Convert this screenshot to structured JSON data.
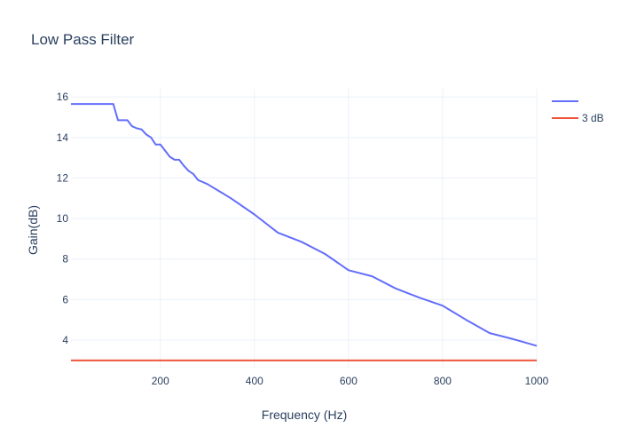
{
  "chart_data": {
    "type": "line",
    "title": "Low Pass Filter",
    "xlabel": "Frequency (Hz)",
    "ylabel": "Gain(dB)",
    "xlim": [
      10,
      1000
    ],
    "ylim": [
      2.6,
      16.4
    ],
    "xticks": [
      200,
      400,
      600,
      800,
      1000
    ],
    "yticks": [
      4,
      6,
      8,
      10,
      12,
      14,
      16
    ],
    "grid": true,
    "legend_position": "top-right",
    "series": [
      {
        "name": "",
        "color": "#636efa",
        "x": [
          10,
          20,
          30,
          40,
          50,
          60,
          70,
          80,
          90,
          100,
          110,
          120,
          130,
          140,
          150,
          160,
          170,
          180,
          190,
          200,
          210,
          220,
          230,
          240,
          250,
          260,
          270,
          280,
          290,
          300,
          350,
          400,
          450,
          500,
          550,
          600,
          650,
          700,
          750,
          800,
          850,
          900,
          950,
          1000
        ],
        "y": [
          15.65,
          15.65,
          15.65,
          15.65,
          15.65,
          15.65,
          15.65,
          15.65,
          15.65,
          15.65,
          14.85,
          14.85,
          14.85,
          14.55,
          14.45,
          14.4,
          14.15,
          14.0,
          13.65,
          13.65,
          13.35,
          13.05,
          12.9,
          12.9,
          12.6,
          12.35,
          12.2,
          11.9,
          11.8,
          11.7,
          11.0,
          10.2,
          9.3,
          8.85,
          8.25,
          7.45,
          7.15,
          6.55,
          6.1,
          5.7,
          5.0,
          4.35,
          4.05,
          3.72
        ]
      },
      {
        "name": "3 dB",
        "color": "#ef553b",
        "x": [
          10,
          1000
        ],
        "y": [
          3,
          3
        ]
      }
    ]
  }
}
